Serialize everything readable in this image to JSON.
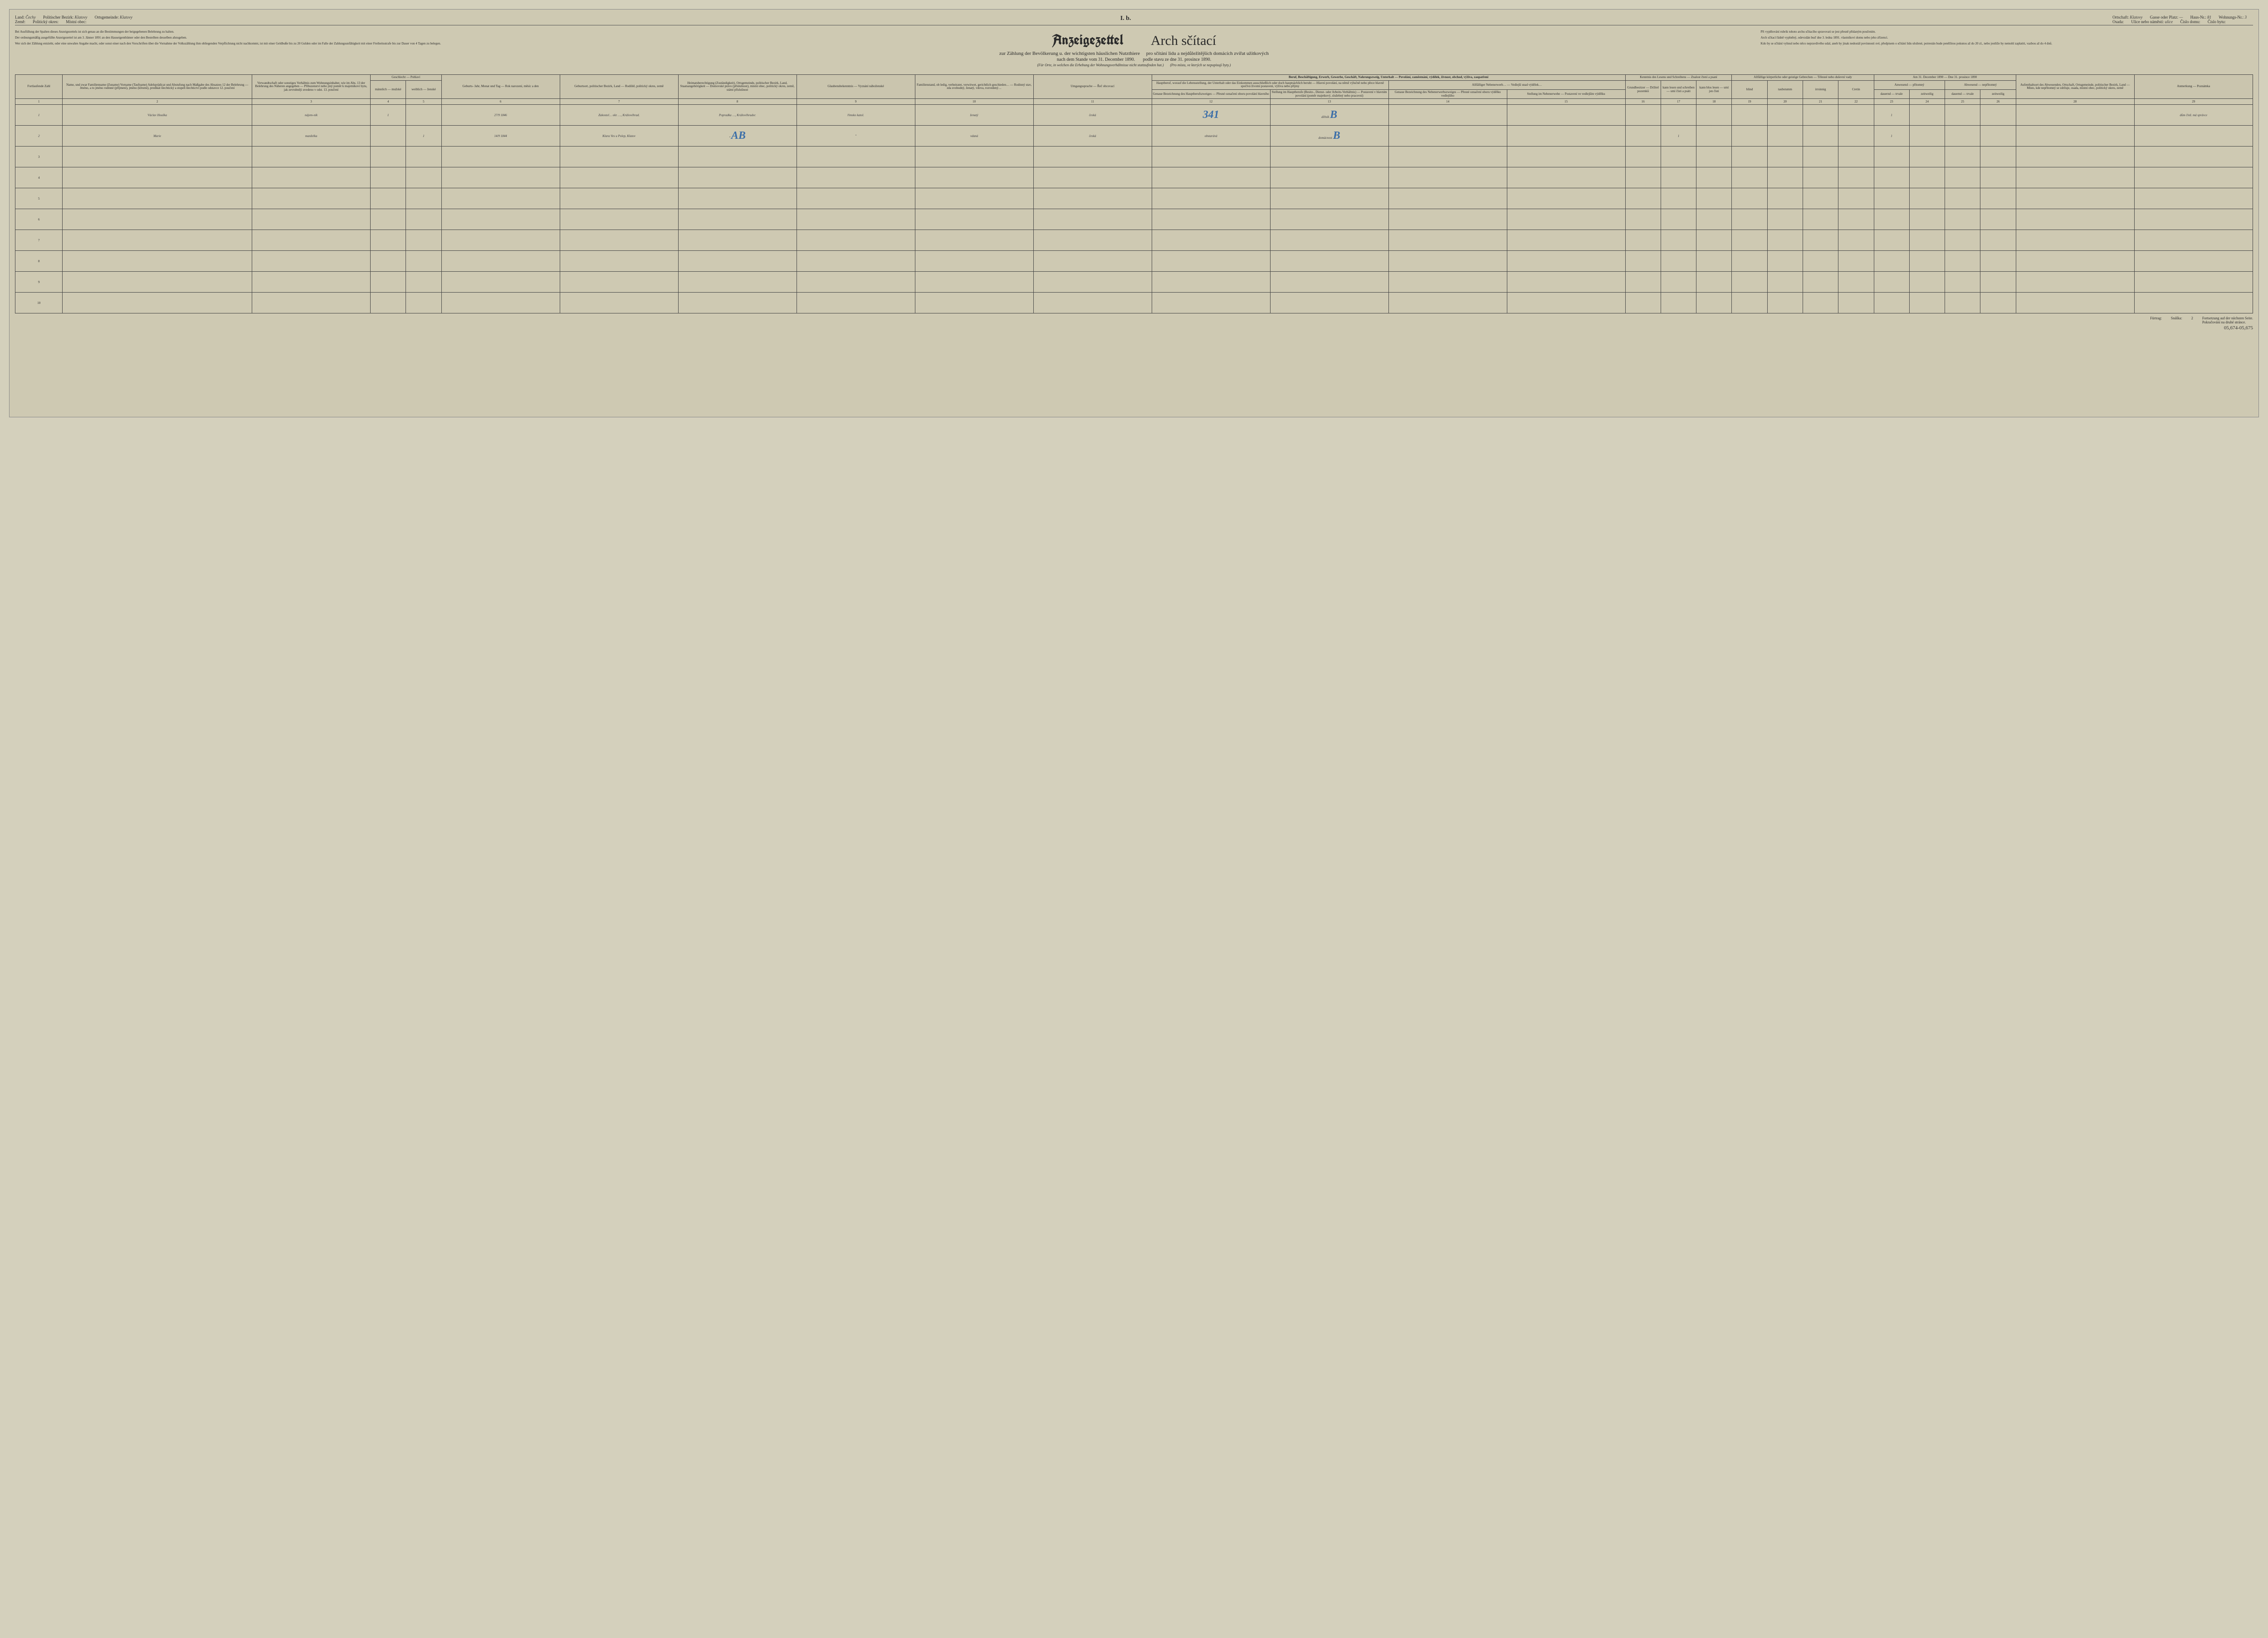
{
  "top": {
    "land_label": "Land:",
    "land_val": "Čechy",
    "bezirk_label": "Politischer Bezirk:",
    "bezirk_val": "Klatovy",
    "gemeinde_label": "Ortsgemeinde:",
    "gemeinde_val": "Klatovy",
    "zeme_label": "Země:",
    "okres_label": "Politický okres:",
    "obec_label": "Místní obec:",
    "roman": "I. b.",
    "ortschaft_label": "Ortschaft:",
    "ortschaft_val": "Klatovy",
    "osada_label": "Osada:",
    "gasse_label": "Gasse oder Platz:",
    "gasse_val": "—",
    "ulice_label": "Ulice nebo náměstí:",
    "ulice_val": "ulice",
    "hausnr_label": "Haus-Nr.:",
    "hausnr_val": "81",
    "cislo_domu_label": "Číslo domu:",
    "wohnr_label": "Wohnungs-Nr.:",
    "wohnr_val": "3",
    "cislo_bytu_label": "Číslo bytu:"
  },
  "notes_left": [
    "Bei Ausfüllung der Spalten dieses Anzeigezettels ist sich genau an die Bestimmungen der beigegebenen Belehrung zu halten.",
    "Der ordnungsmäßig ausgefüllte Anzeigezettel ist am 3. Jänner 1891 an den Hauseigenthümer oder den Bestellten desselben abzugeben.",
    "Wer sich der Zählung entzieht, oder eine unwahre Angabe macht, oder sonst einer nach den Vorschriften über die Vornahme der Volkszählung ihm obliegenden Verpflichtung nicht nachkommt, ist mit einer Geldbuße bis zu 20 Gulden oder im Falle der Zahlungsunfähigkeit mit einer Freiheitsstrafe bis zur Dauer von 4 Tagen zu belegen."
  ],
  "notes_right": [
    "Při vyplňování rubrik tohoto archu sčítacího spravovati se jest přesně přidaným poučením.",
    "Arch sčítací řádně vyplněný, odevzdán buď dne 3. ledna 1891. vlastníkovi domu nebo jeho zřízenci.",
    "Kdo by se sčítání vyhnul nebo něco nepravdivého udal, aneb by jinak nedostál povinnosti své, předpisem o sčítání lidu uložené, potrestán bude peněžitou pokutou až do 20 zl., nebo jestliže by nemohl zaplatiti, vazbou až do 4 dnů."
  ],
  "titles": {
    "de_main": "Anzeigezettel",
    "cz_main": "Arch sčítací",
    "de_sub": "zur Zählung der Bevölkerung u. der wichtigsten häuslichen Nutzthiere",
    "cz_sub": "pro sčítání lidu a nejdůležitějších domácích zvířat užitkových",
    "de_date": "nach dem Stande vom 31. December 1890.",
    "cz_date": "podle stavu ze dne 31. prosince 1890.",
    "de_note": "(Für Orte, in welchen die Erhebung der Wohnungsverhältnisse nicht stattzufinden hat.)",
    "cz_note": "(Pro místa, ve kterých se nepopisují byty.)"
  },
  "headers": {
    "num": "Fortlaufende Zahl",
    "name": "Name, und zwar Familienname (Zuname) Vorname (Taufname) Adelsprädicat und Abstufung nach Maßgabe des Absatzes 12 der Belehrung — Jméno, a to jméno rodinné (příjmení), jméno (křestní), predikát šlechtický a stupeň šlechtictví podle odstavce 12. poučení",
    "rel": "Verwandtschaft oder sonstiges Verhältnis zum Wohnungsinhaber, wie im Abs. 13 der Belehrung des Näheren angegeben — Příbuzenství nebo jiný poměr k majetníkovi bytu, jak zevrubněji uvedeno v odst. 13. poučení",
    "sex": "Geschlecht — Pohlaví",
    "sex_m": "männlich — mužské",
    "sex_f": "weiblich — ženské",
    "birth": "Geburts- Jahr, Monat und Tag — Rok narození, měsíc a den",
    "birthplace": "Geburtsort, politischer Bezirk, Land — Rodiště, politický okres, země",
    "heimat": "Heimatsberechtigung (Zuständigkeit), Ortsgemeinde, politischer Bezirk, Land, Staatsangehörigkeit — Domovské právo (příslušnost), místní obec, politický okres, země, státní příslušnost",
    "relig": "Glaubensbekenntnis — Vyznání náboženské",
    "famstand": "Familienstand, ob ledig, verheiratet, verwitwet, gerichtlich geschieden… — Rodinný stav, zda svobodný, ženatý, vdova, rozvedený…",
    "lang": "Umgangssprache — Řeč obcovací",
    "beruf_group": "Beruf, Beschäftigung, Erwerb, Gewerbe, Geschäft, Nahrungszweig, Unterhalt — Povolání, zaměstnání, výdělek, živnost, obchod, výživa, zaopatření",
    "beruf1": "Hauptberuf, worauf die Lebensstellung, der Unterhalt oder das Einkommen ausschließlich oder doch hauptsächlich beruht — Hlavní povolání, na němž výlučně nebo přece hlavně spočívá životní postavení, výživa nebo příjmy",
    "beruf2": "Genaue Bezeichnung des Hauptberufszweiges — Přesné označení oboru povolání hlavního",
    "beruf3": "Stellung im Hauptberufe (Besitz-, Dienst- oder Arbeits-Verhältnis) — Postavení v hlavním povolání (poměr majetkový, služebný nebo pracovní)",
    "neben_group": "Allfälliger Nebenerwerb… — Vedlejší snad výdělek…",
    "neben1": "Genaue Bezeichnung des Nebenerwerbszweiges — Přesné označení oboru výdělku vedlejšího",
    "neben2": "Stellung im Nebenerwebe — Postavení ve vedlejším výdělku",
    "read_group": "Kenntnis des Lesens und Schreibens — Znalost čtení a psaní",
    "read1": "Grundbesitzer — Držitel pozemků",
    "read2": "kann lesen und schreiben — umí čísti a psáti",
    "read3": "kann blos lesen — umí jen čísti",
    "gebrech_group": "Allfällige körperliche oder geistige Gebrechen — Tělesné nebo duševní vady",
    "g1": "blind",
    "g2": "taubstumm",
    "g3": "irrsinnig",
    "g4": "Cretin",
    "anw_group": "Am 31. December 1890 — Dne 31. prosince 1890",
    "anw": "Anwesend — přítomný",
    "abw": "Abwesend — nepřítomný",
    "anw1": "dauernd — trvale",
    "anw2": "zeitweilig",
    "aufenth": "Aufenthaltsort des Abwesenden, Ortschaft, Ortsgemeinde, politischer Bezirk, Land — Místo, kde nepřítomný se zdržuje, osada, místní obec, politický okres, země",
    "anmerk": "Anmerkung — Poznámka",
    "vergl": "vergl. Abs. … der Belehrung — srov. odst. … poučení"
  },
  "colnums": [
    "1",
    "2",
    "3",
    "4",
    "5",
    "6",
    "7",
    "8",
    "9",
    "10",
    "11",
    "12",
    "13",
    "14",
    "15",
    "16",
    "17",
    "18",
    "19",
    "20",
    "21",
    "22",
    "23",
    "24",
    "25",
    "26",
    "27",
    "28",
    "29"
  ],
  "rows": [
    {
      "n": "1",
      "name": "Václav Houška",
      "rel": "nájem-ník",
      "m": "1",
      "f": "",
      "birth": "27/9 1846",
      "birthplace": "Zakostel… okr. …, Královéhrad.",
      "heimat": "Popradka …, Královéhradec",
      "relig": "římsko katol.",
      "stand": "ženatý",
      "lang": "česká",
      "beruf2": "",
      "beruf2_blue": "341",
      "beruf3": "dělník",
      "beruf3_blue": "B",
      "anw1": "1",
      "note": "dům činž. má správce"
    },
    {
      "n": "2",
      "name": "Marie",
      "rel": "manželka",
      "m": "",
      "f": "1",
      "birth": "14/9 1844",
      "birthplace": "Klara Ves u Polep, Klatov",
      "heimat": "″",
      "heimat_blue": "AB",
      "relig": "″",
      "stand": "vdaná",
      "lang": "česká",
      "beruf2": "obstarává",
      "beruf2_blue": "",
      "beruf3": "domácnost",
      "beruf3_blue": "B",
      "anw1": "1",
      "rw": "1"
    }
  ],
  "footer": {
    "furtrag": "Fürtrag:",
    "snaska": "Snáška:",
    "count": "2",
    "cont_de": "Fortsetzung auf der nächsten Seite.",
    "cont_cz": "Pokračování na druhé stránce.",
    "stamp": "05,674-05,675"
  }
}
